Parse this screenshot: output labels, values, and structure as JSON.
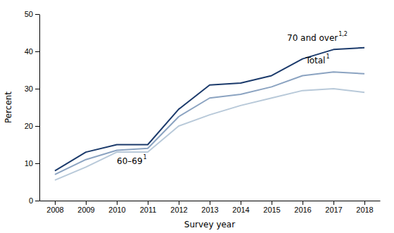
{
  "chart_data": {
    "type": "line",
    "x": [
      2008,
      2009,
      2010,
      2011,
      2012,
      2013,
      2014,
      2015,
      2016,
      2017,
      2018
    ],
    "series": [
      {
        "color": "#1b3a6b",
        "values": [
          8.0,
          13.0,
          15.0,
          15.0,
          24.5,
          31.0,
          31.5,
          33.5,
          38.0,
          40.5,
          41.0
        ]
      },
      {
        "color": "#8ba3c1",
        "values": [
          7.0,
          11.0,
          13.5,
          14.0,
          22.5,
          27.5,
          28.5,
          30.5,
          33.5,
          34.5,
          34.0
        ]
      },
      {
        "color": "#b8c9d9",
        "values": [
          5.5,
          9.0,
          13.0,
          13.0,
          20.0,
          23.0,
          25.5,
          27.5,
          29.5,
          30.0,
          29.0
        ]
      }
    ],
    "annotations": [
      {
        "text": "70 and over",
        "superscript": "1,2",
        "x": 2015.5,
        "y": 43.5
      },
      {
        "text": "Total",
        "superscript": "1",
        "x": 2016.1,
        "y": 37.5
      },
      {
        "text": "60–69",
        "superscript": "1",
        "x": 2010.0,
        "y": 10.5
      }
    ],
    "xlabel": "Survey year",
    "ylabel": "Percent",
    "xlim": [
      2007.5,
      2018.5
    ],
    "ylim": [
      0,
      50
    ],
    "xticks": [
      2008,
      2009,
      2010,
      2011,
      2012,
      2013,
      2014,
      2015,
      2016,
      2017,
      2018
    ],
    "yticks": [
      0,
      10,
      20,
      30,
      40,
      50
    ],
    "grid": false
  }
}
